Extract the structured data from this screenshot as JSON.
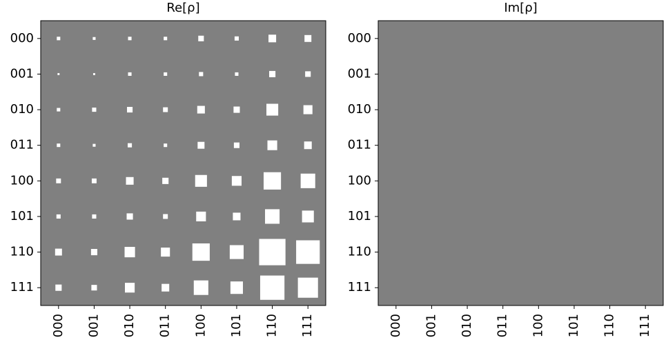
{
  "chart_data": [
    {
      "type": "hinton",
      "title": "Re[ρ]",
      "background": "#808080",
      "positive_color": "#ffffff",
      "negative_color": "#000000",
      "rows": [
        "000",
        "001",
        "010",
        "011",
        "100",
        "101",
        "110",
        "111"
      ],
      "columns": [
        "000",
        "001",
        "010",
        "011",
        "100",
        "101",
        "110",
        "111"
      ],
      "values": [
        [
          0.009,
          0.006,
          0.009,
          0.009,
          0.023,
          0.013,
          0.043,
          0.035
        ],
        [
          0.003,
          0.003,
          0.009,
          0.009,
          0.013,
          0.009,
          0.029,
          0.023
        ],
        [
          0.009,
          0.013,
          0.023,
          0.017,
          0.043,
          0.029,
          0.103,
          0.06
        ],
        [
          0.009,
          0.006,
          0.013,
          0.009,
          0.035,
          0.023,
          0.07,
          0.043
        ],
        [
          0.017,
          0.017,
          0.043,
          0.029,
          0.103,
          0.07,
          0.222,
          0.156
        ],
        [
          0.013,
          0.013,
          0.029,
          0.017,
          0.07,
          0.043,
          0.156,
          0.103
        ],
        [
          0.035,
          0.029,
          0.08,
          0.06,
          0.222,
          0.142,
          0.512,
          0.41
        ],
        [
          0.029,
          0.023,
          0.07,
          0.043,
          0.156,
          0.115,
          0.435,
          0.298
        ]
      ]
    },
    {
      "type": "hinton",
      "title": "Im[ρ]",
      "background": "#808080",
      "positive_color": "#ffffff",
      "negative_color": "#000000",
      "rows": [
        "000",
        "001",
        "010",
        "011",
        "100",
        "101",
        "110",
        "111"
      ],
      "columns": [
        "000",
        "001",
        "010",
        "011",
        "100",
        "101",
        "110",
        "111"
      ],
      "values": [
        [
          0,
          0,
          0,
          0,
          0,
          0,
          0,
          0
        ],
        [
          0,
          0,
          0,
          0,
          0,
          0,
          0,
          0
        ],
        [
          0,
          0,
          0,
          0,
          0,
          0,
          0,
          0
        ],
        [
          0,
          0,
          0,
          0,
          0,
          0,
          0,
          0
        ],
        [
          0,
          0,
          0,
          0,
          0,
          0,
          0,
          0
        ],
        [
          0,
          0,
          0,
          0,
          0,
          0,
          0,
          0
        ],
        [
          0,
          0,
          0,
          0,
          0,
          0,
          0,
          0
        ],
        [
          0,
          0,
          0,
          0,
          0,
          0,
          0,
          0
        ]
      ]
    }
  ]
}
